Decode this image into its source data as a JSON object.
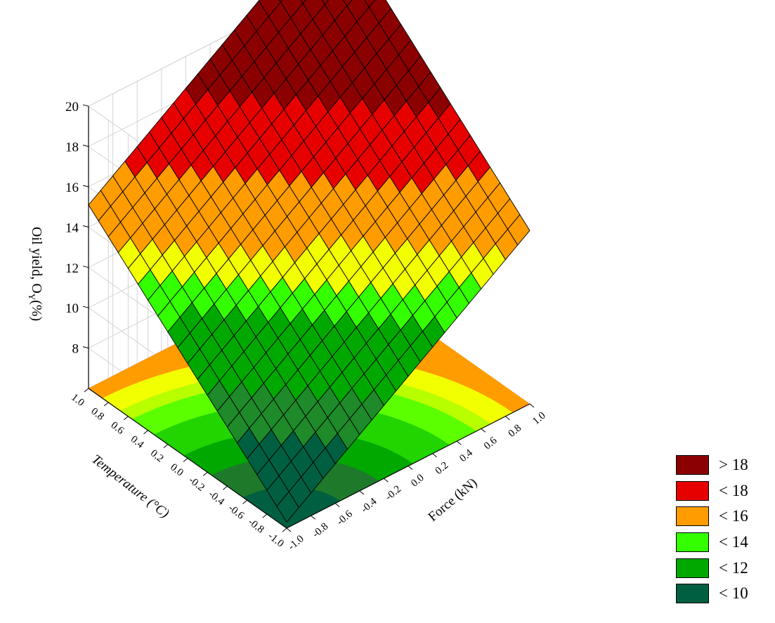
{
  "chart_data": {
    "type": "surface3d",
    "title": "",
    "zlabel": "Oil yield, O",
    "zlabel_sub": "Y",
    "zlabel_unit": "(%)",
    "xlabel": "Force (kN)",
    "ylabel": "Temperature (°C)",
    "zlim": [
      6,
      20
    ],
    "z_ticks": [
      "20",
      "18",
      "16",
      "14",
      "12",
      "10",
      "8"
    ],
    "x_ticks": [
      "-1.0",
      "-0.8",
      "-0.6",
      "-0.4",
      "-0.2",
      "0.0",
      "0.2",
      "0.4",
      "0.6",
      "0.8",
      "1.0"
    ],
    "y_ticks": [
      "-1.0",
      "-0.8",
      "-0.6",
      "-0.4",
      "-0.2",
      "0.0",
      "0.2",
      "0.4",
      "0.6",
      "0.8",
      "1.0"
    ],
    "surface": {
      "description_model": "planar response",
      "corners": [
        {
          "force": -1.0,
          "temperature": -1.0,
          "oil_yield": 6.3
        },
        {
          "force": 1.0,
          "temperature": -1.0,
          "oil_yield": 14.6
        },
        {
          "force": -1.0,
          "temperature": 1.0,
          "oil_yield": 15.1
        },
        {
          "force": 1.0,
          "temperature": 1.0,
          "oil_yield": 23.4
        }
      ],
      "grid_divisions": 20
    },
    "legend": [
      {
        "label": "> 18",
        "color": "#8b0000"
      },
      {
        "label": "< 18",
        "color": "#e60000"
      },
      {
        "label": "< 16",
        "color": "#ff9c00"
      },
      {
        "label": "< 14",
        "color": "#33ff00"
      },
      {
        "label": "< 12",
        "color": "#00a800"
      },
      {
        "label": "< 10",
        "color": "#005f40"
      }
    ],
    "legend_position": "bottom-right",
    "grid": true
  }
}
